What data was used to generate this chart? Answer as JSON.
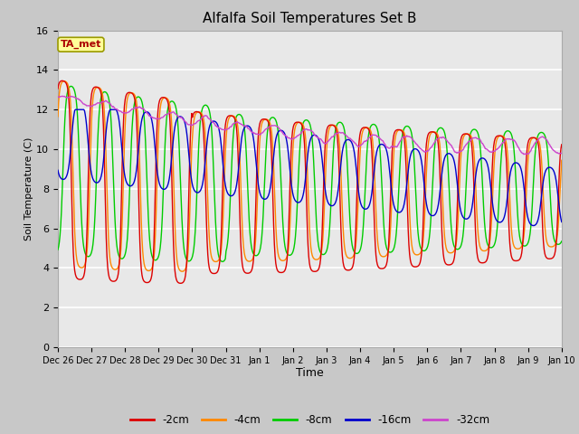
{
  "title": "Alfalfa Soil Temperatures Set B",
  "xlabel": "Time",
  "ylabel": "Soil Temperature (C)",
  "ylim": [
    0,
    16
  ],
  "yticks": [
    0,
    2,
    4,
    6,
    8,
    10,
    12,
    14,
    16
  ],
  "fig_bg_color": "#c8c8c8",
  "plot_bg_color": "#e8e8e8",
  "line_colors": {
    "-2cm": "#dd0000",
    "-4cm": "#ff8800",
    "-8cm": "#00cc00",
    "-16cm": "#0000cc",
    "-32cm": "#cc44cc"
  },
  "legend_labels": [
    "-2cm",
    "-4cm",
    "-8cm",
    "-16cm",
    "-32cm"
  ],
  "ta_met_box_color": "#ffff99",
  "ta_met_text_color": "#aa0000",
  "date_labels": [
    "Dec 26",
    "Dec 27",
    "Dec 28",
    "Dec 29",
    "Dec 30",
    "Dec 31",
    "Jan 1",
    "Jan 2",
    "Jan 3",
    "Jan 4",
    "Jan 5",
    "Jan 6",
    "Jan 7",
    "Jan 8",
    "Jan 9",
    "Jan 10"
  ],
  "n_days": 15,
  "points_per_day": 48
}
